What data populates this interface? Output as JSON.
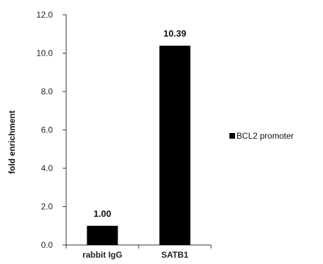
{
  "chart_data": {
    "type": "bar",
    "categories": [
      "rabbit IgG",
      "SATB1"
    ],
    "series": [
      {
        "name": "BCL2 promoter",
        "values": [
          1.0,
          10.39
        ],
        "color": "#000000"
      }
    ],
    "data_labels": [
      "1.00",
      "10.39"
    ],
    "ylabel": "fold enrichment",
    "xlabel": "",
    "ylim": [
      0,
      12
    ],
    "yticks": [
      "0.0",
      "2.0",
      "4.0",
      "6.0",
      "8.0",
      "10.0",
      "12.0"
    ],
    "grid": false,
    "legend_position": "right"
  }
}
